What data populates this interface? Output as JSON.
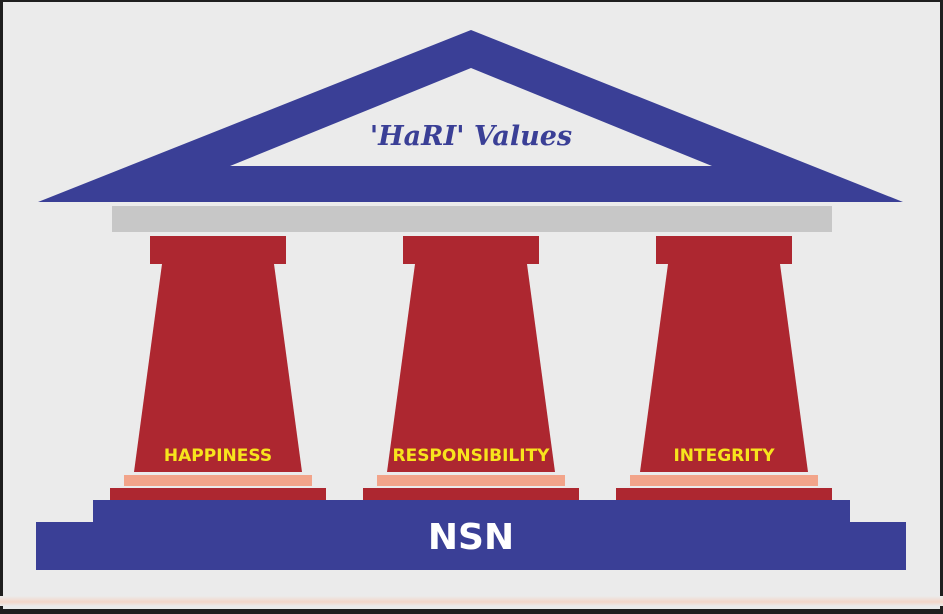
{
  "roof": {
    "title": "'HaRI' Values"
  },
  "pillars": [
    {
      "label": "HAPPINESS"
    },
    {
      "label": "RESPONSIBILITY"
    },
    {
      "label": "INTEGRITY"
    }
  ],
  "base": {
    "label": "NSN"
  },
  "colors": {
    "background": "#ebebeb",
    "roof_blue": "#3a3f96",
    "pillar_red": "#ad2730",
    "step_pink": "#f2a48a",
    "label_yellow": "#f7e41d",
    "beam_gray": "#c7c7c7"
  }
}
